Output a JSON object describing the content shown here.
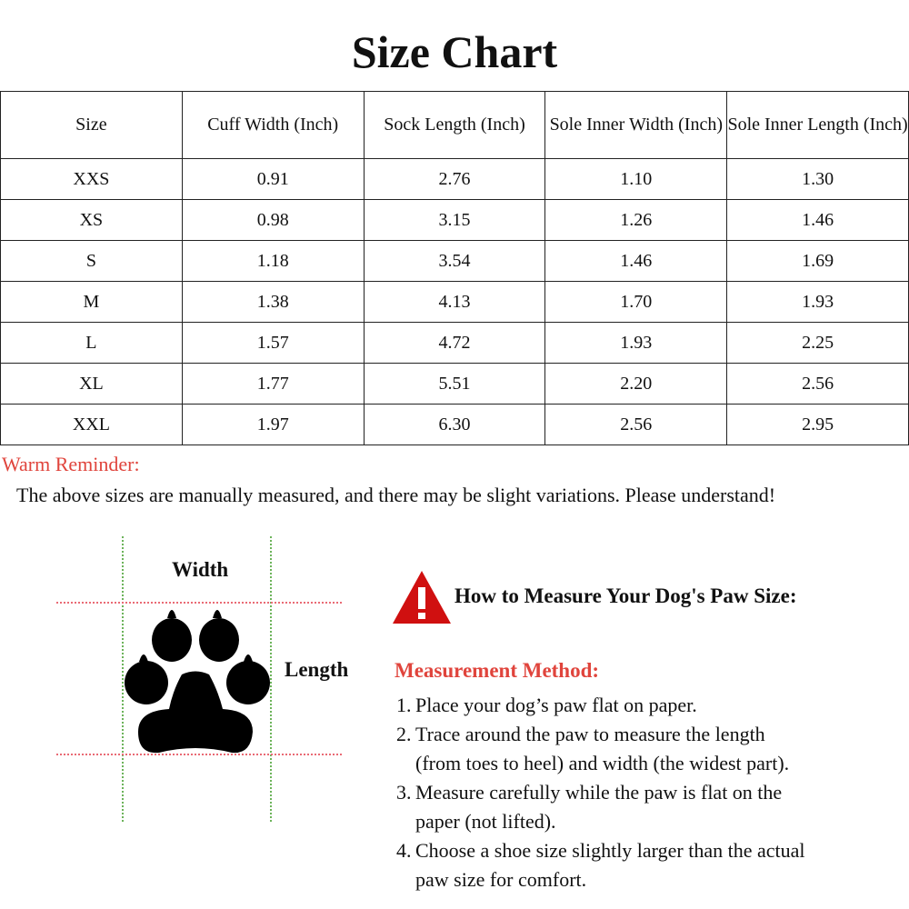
{
  "title": "Size Chart",
  "table": {
    "headers": [
      "Size",
      "Cuff Width (Inch)",
      "Sock Length (Inch)",
      "Sole Inner Width (Inch)",
      "Sole Inner Length (Inch)"
    ],
    "rows": [
      [
        "XXS",
        "0.91",
        "2.76",
        "1.10",
        "1.30"
      ],
      [
        "XS",
        "0.98",
        "3.15",
        "1.26",
        "1.46"
      ],
      [
        "S",
        "1.18",
        "3.54",
        "1.46",
        "1.69"
      ],
      [
        "M",
        "1.38",
        "4.13",
        "1.70",
        "1.93"
      ],
      [
        "L",
        "1.57",
        "4.72",
        "1.93",
        "2.25"
      ],
      [
        "XL",
        "1.77",
        "5.51",
        "2.20",
        "2.56"
      ],
      [
        "XXL",
        "1.97",
        "6.30",
        "2.56",
        "2.95"
      ]
    ]
  },
  "reminder": {
    "label": "Warm Reminder:",
    "text": "The above sizes are manually measured, and there may be slight variations. Please understand!",
    "color": "#e0443c"
  },
  "diagram": {
    "width_label": "Width",
    "length_label": "Length",
    "icon": "paw-icon"
  },
  "guide": {
    "icon": "warning-triangle-icon",
    "heading": "How to Measure Your Dog's Paw Size:",
    "method_label": "Measurement Method:",
    "steps": [
      {
        "n": "1.",
        "lines": [
          "Place your dog’s paw flat on paper."
        ]
      },
      {
        "n": "2.",
        "lines": [
          "Trace around the paw to measure the length",
          "(from toes to heel) and width (the widest part)."
        ]
      },
      {
        "n": "3.",
        "lines": [
          "Measure carefully while the paw is flat on the",
          "paper (not lifted)."
        ]
      },
      {
        "n": "4.",
        "lines": [
          "Choose a shoe size slightly larger than the actual",
          "paw size for comfort."
        ]
      }
    ]
  }
}
